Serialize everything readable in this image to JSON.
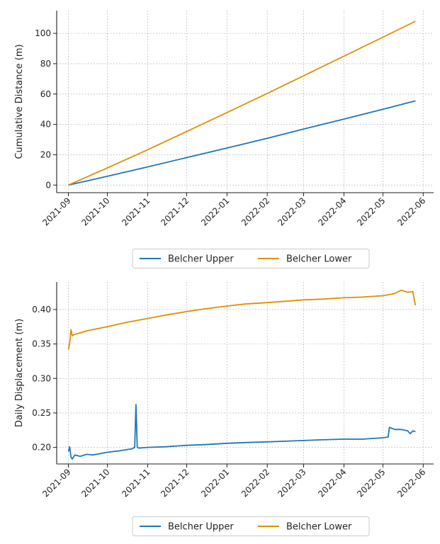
{
  "chart_data": [
    {
      "type": "line",
      "xlabel": "",
      "ylabel": "Cumulative Distance (m)",
      "x_ticks": [
        "2021-09",
        "2021-10",
        "2021-11",
        "2021-12",
        "2022-01",
        "2022-02",
        "2022-03",
        "2022-04",
        "2022-05",
        "2022-06"
      ],
      "y_ticks": [
        0,
        20,
        40,
        60,
        80,
        100
      ],
      "xlim": [
        "2021-08-23",
        "2022-06-09"
      ],
      "ylim": [
        -5,
        115
      ],
      "grid": true,
      "legend_placement": "below",
      "series": [
        {
          "name": "Belcher Upper",
          "color": "#1f77b4",
          "x": [
            "2021-09-01",
            "2021-10-01",
            "2021-11-01",
            "2021-12-01",
            "2022-01-01",
            "2022-02-01",
            "2022-03-01",
            "2022-04-01",
            "2022-05-01",
            "2022-05-26"
          ],
          "values": [
            0,
            5.8,
            12.0,
            18.1,
            24.4,
            30.8,
            37.0,
            43.5,
            50.0,
            55.5
          ]
        },
        {
          "name": "Belcher Lower",
          "color": "#de8f05",
          "x": [
            "2021-09-01",
            "2021-10-01",
            "2021-11-01",
            "2021-12-01",
            "2022-01-01",
            "2022-02-01",
            "2022-03-01",
            "2022-04-01",
            "2022-05-01",
            "2022-05-26"
          ],
          "values": [
            0,
            11.3,
            23.3,
            35.3,
            47.8,
            60.4,
            72.1,
            85.0,
            97.5,
            108.0
          ]
        }
      ]
    },
    {
      "type": "line",
      "xlabel": "",
      "ylabel": "Daily Displacement (m)",
      "x_ticks": [
        "2021-09",
        "2021-10",
        "2021-11",
        "2021-12",
        "2022-01",
        "2022-02",
        "2022-03",
        "2022-04",
        "2022-05",
        "2022-06"
      ],
      "y_ticks": [
        "0.20",
        "0.25",
        "0.30",
        "0.35",
        "0.40"
      ],
      "xlim": [
        "2021-08-23",
        "2022-06-09"
      ],
      "ylim": [
        0.176,
        0.44
      ],
      "grid": true,
      "legend_placement": "below",
      "series": [
        {
          "name": "Belcher Upper",
          "color": "#1f77b4",
          "x": [
            "2021-09-01",
            "2021-09-02",
            "2021-09-03",
            "2021-09-04",
            "2021-09-06",
            "2021-09-10",
            "2021-09-15",
            "2021-09-20",
            "2021-10-01",
            "2021-10-10",
            "2021-10-20",
            "2021-10-22",
            "2021-10-23",
            "2021-10-24",
            "2021-10-25",
            "2021-11-01",
            "2021-11-15",
            "2021-12-01",
            "2021-12-15",
            "2022-01-01",
            "2022-01-15",
            "2022-02-01",
            "2022-02-15",
            "2022-03-01",
            "2022-03-15",
            "2022-04-01",
            "2022-04-15",
            "2022-05-01",
            "2022-05-05",
            "2022-05-06",
            "2022-05-10",
            "2022-05-15",
            "2022-05-20",
            "2022-05-22",
            "2022-05-24",
            "2022-05-26"
          ],
          "values": [
            0.194,
            0.201,
            0.186,
            0.183,
            0.189,
            0.187,
            0.19,
            0.189,
            0.193,
            0.195,
            0.198,
            0.2,
            0.262,
            0.201,
            0.199,
            0.2,
            0.201,
            0.203,
            0.204,
            0.206,
            0.207,
            0.208,
            0.209,
            0.21,
            0.211,
            0.212,
            0.212,
            0.214,
            0.215,
            0.229,
            0.226,
            0.226,
            0.224,
            0.22,
            0.224,
            0.223
          ]
        },
        {
          "name": "Belcher Lower",
          "color": "#de8f05",
          "x": [
            "2021-09-01",
            "2021-09-02",
            "2021-09-03",
            "2021-09-04",
            "2021-09-06",
            "2021-09-10",
            "2021-09-15",
            "2021-09-20",
            "2021-10-01",
            "2021-10-15",
            "2021-11-01",
            "2021-11-15",
            "2021-12-01",
            "2021-12-15",
            "2022-01-01",
            "2022-01-15",
            "2022-02-01",
            "2022-02-15",
            "2022-03-01",
            "2022-03-15",
            "2022-04-01",
            "2022-04-15",
            "2022-05-01",
            "2022-05-10",
            "2022-05-15",
            "2022-05-20",
            "2022-05-24",
            "2022-05-26"
          ],
          "values": [
            0.342,
            0.351,
            0.371,
            0.362,
            0.364,
            0.366,
            0.369,
            0.371,
            0.375,
            0.381,
            0.387,
            0.392,
            0.397,
            0.401,
            0.405,
            0.408,
            0.41,
            0.412,
            0.414,
            0.415,
            0.417,
            0.418,
            0.42,
            0.423,
            0.428,
            0.425,
            0.426,
            0.406
          ]
        }
      ]
    }
  ]
}
